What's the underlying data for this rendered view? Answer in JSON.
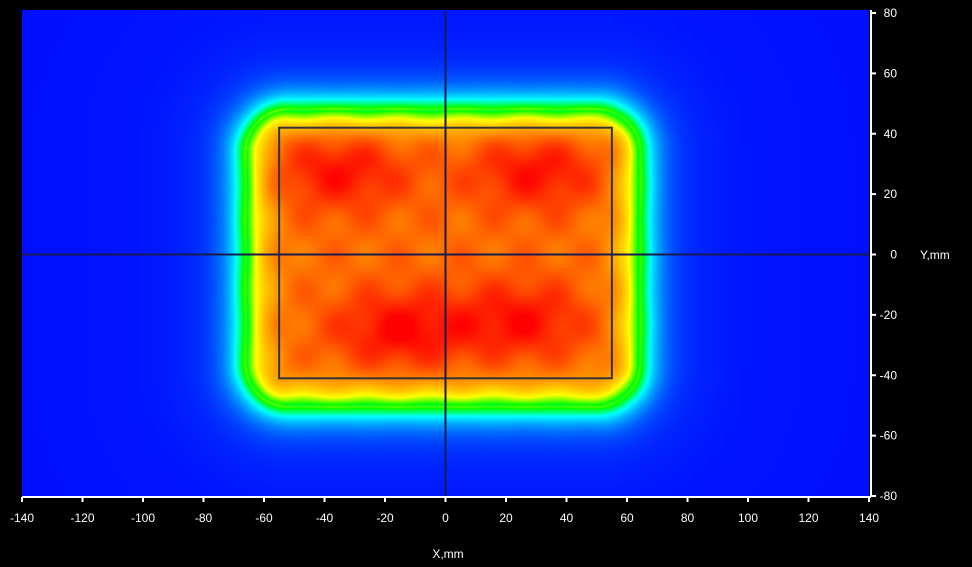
{
  "chart_data": {
    "type": "heatmap",
    "title": "",
    "xlabel": "X,mm",
    "ylabel": "Y,mm",
    "xlim": [
      -140,
      140
    ],
    "ylim": [
      -80,
      80
    ],
    "xticks": [
      -140,
      -120,
      -100,
      -80,
      -60,
      -40,
      -20,
      0,
      20,
      40,
      60,
      80,
      100,
      120,
      140
    ],
    "yticks": [
      80,
      60,
      40,
      20,
      0,
      -20,
      -40,
      -60,
      -80
    ],
    "colormap": [
      "#0010ff",
      "#00ffff",
      "#00ff00",
      "#ffff00",
      "#ff9900",
      "#ff0000"
    ],
    "crosshair": {
      "x": 0,
      "y": 0
    },
    "rectangle": {
      "x": [
        -55,
        55
      ],
      "y": [
        -41,
        42
      ]
    },
    "hot_region": {
      "x": [
        -72,
        70
      ],
      "y": [
        -56,
        54
      ]
    },
    "background": "#000000"
  }
}
